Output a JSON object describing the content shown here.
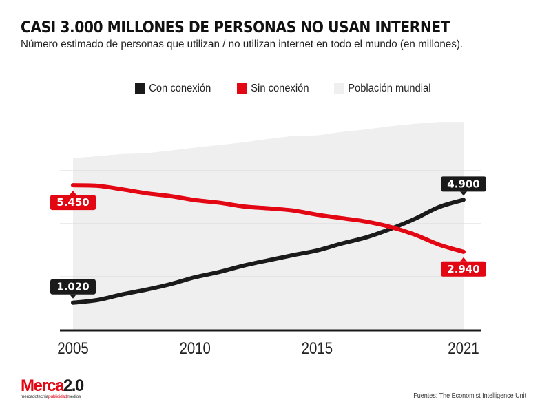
{
  "header": {
    "title": "CASI 3.000 MILLONES DE PERSONAS NO USAN INTERNET",
    "subtitle": "Número estimado de personas que utilizan / no utilizan internet en todo el mundo (en millones)."
  },
  "legend": [
    {
      "label": "Con conexión",
      "color": "#1a1a1a"
    },
    {
      "label": "Sin conexión",
      "color": "#e30613"
    },
    {
      "label": "Población mundial",
      "color": "#efefef"
    }
  ],
  "footer": {
    "logo_main_red": "Merca",
    "logo_main_black": "2.0",
    "logo_sub_1": "mercadotecnia",
    "logo_sub_2": "publicidad",
    "logo_sub_3": "medios",
    "source": "Fuentes: The Economist Intelligence Unit"
  },
  "chart_data": {
    "type": "line",
    "title": "CASI 3.000 MILLONES DE PERSONAS NO USAN INTERNET",
    "subtitle": "Número estimado de personas que utilizan / no utilizan internet en todo el mundo (en millones).",
    "xlabel": "",
    "ylabel": "",
    "x": [
      2005,
      2006,
      2007,
      2008,
      2009,
      2010,
      2011,
      2012,
      2013,
      2014,
      2015,
      2016,
      2017,
      2018,
      2019,
      2020,
      2021
    ],
    "xticks": [
      "2005",
      "2010",
      "2015",
      "2021"
    ],
    "xlim": [
      2005,
      2021
    ],
    "ylim": [
      0,
      8000
    ],
    "ygrid": [
      2000,
      4000,
      6000
    ],
    "grid": true,
    "legend_position": "top",
    "series": [
      {
        "name": "Con conexión",
        "color": "#1a1a1a",
        "values": [
          1020,
          1120,
          1330,
          1510,
          1720,
          1980,
          2180,
          2420,
          2620,
          2810,
          2990,
          3250,
          3480,
          3800,
          4180,
          4630,
          4900
        ]
      },
      {
        "name": "Sin conexión",
        "color": "#e30613",
        "values": [
          5450,
          5430,
          5300,
          5150,
          5040,
          4890,
          4790,
          4650,
          4580,
          4500,
          4340,
          4210,
          4080,
          3880,
          3590,
          3210,
          2940
        ]
      },
      {
        "name": "Población mundial",
        "color": "#efefef",
        "type": "area",
        "values": [
          6470,
          6550,
          6630,
          6660,
          6760,
          6870,
          6970,
          7070,
          7200,
          7310,
          7330,
          7460,
          7560,
          7680,
          7770,
          7840,
          7840
        ]
      }
    ],
    "annotations": [
      {
        "series": "Sin conexión",
        "x": 2005,
        "label": "5.450",
        "color": "#e30613",
        "placement": "below"
      },
      {
        "series": "Con conexión",
        "x": 2005,
        "label": "1.020",
        "color": "#1a1a1a",
        "placement": "above"
      },
      {
        "series": "Con conexión",
        "x": 2021,
        "label": "4.900",
        "color": "#1a1a1a",
        "placement": "above"
      },
      {
        "series": "Sin conexión",
        "x": 2021,
        "label": "2.940",
        "color": "#e30613",
        "placement": "below"
      }
    ]
  }
}
